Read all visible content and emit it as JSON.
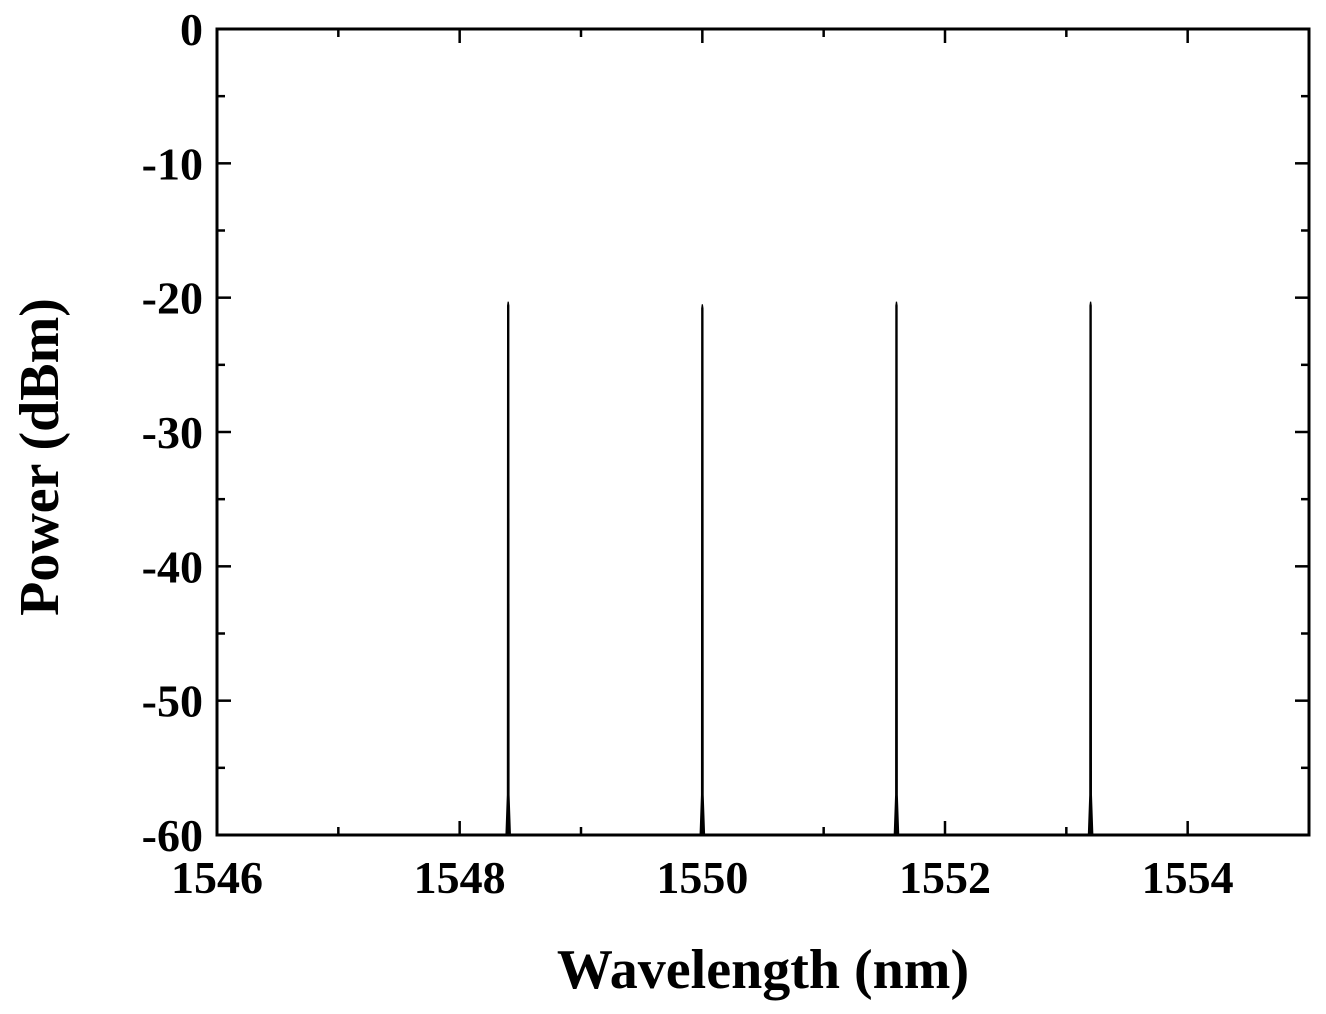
{
  "chart_data": {
    "type": "line",
    "title": "",
    "xlabel": "Wavelength (nm)",
    "ylabel": "Power (dBm)",
    "xlim": [
      1546,
      1555
    ],
    "ylim": [
      -60,
      0
    ],
    "xticks": [
      1546,
      1548,
      1550,
      1552,
      1554
    ],
    "xtick_labels": [
      "1546",
      "1548",
      "1550",
      "1552",
      "1554"
    ],
    "yticks": [
      0,
      -10,
      -20,
      -30,
      -40,
      -50,
      -60
    ],
    "ytick_labels": [
      "0",
      "-10",
      "-20",
      "-30",
      "-40",
      "-50",
      "-60"
    ],
    "grid": false,
    "legend": "none",
    "line_color": "#000000",
    "series": [
      {
        "peaks": [
          {
            "x": 1548.4,
            "y": -20.3
          },
          {
            "x": 1550.0,
            "y": -20.5
          },
          {
            "x": 1551.6,
            "y": -20.3
          },
          {
            "x": 1553.2,
            "y": -20.3
          }
        ],
        "floor": -60
      }
    ]
  }
}
